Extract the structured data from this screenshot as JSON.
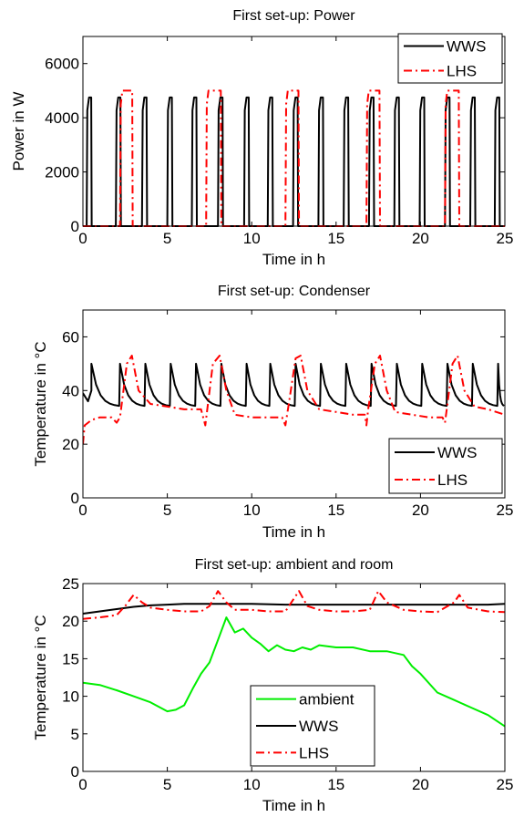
{
  "colors": {
    "WWS": "#000000",
    "LHS": "#ff0000",
    "ambient": "#00ee00"
  },
  "chart_data": [
    {
      "type": "line",
      "title": "First set-up: Power",
      "xlabel": "Time in h",
      "ylabel": "Power in W",
      "xlim": [
        0,
        25
      ],
      "ylim": [
        0,
        7000
      ],
      "xticks": [
        0,
        5,
        10,
        15,
        20,
        25
      ],
      "yticks": [
        0,
        2000,
        4000,
        6000
      ],
      "legend": {
        "placement": "top-right"
      },
      "series": [
        {
          "name": "WWS",
          "style": "solid",
          "color": "#000000",
          "description_kind": "pulse_train",
          "pulse_value": 4750,
          "pulses_start_end_h": [
            [
              0.22,
              0.52
            ],
            [
              1.95,
              2.25
            ],
            [
              3.5,
              3.8
            ],
            [
              5.0,
              5.3
            ],
            [
              6.45,
              6.75
            ],
            [
              8.0,
              8.3
            ],
            [
              9.55,
              9.85
            ],
            [
              10.95,
              11.25
            ],
            [
              12.45,
              12.75
            ],
            [
              13.95,
              14.25
            ],
            [
              15.45,
              15.75
            ],
            [
              16.95,
              17.25
            ],
            [
              18.45,
              18.75
            ],
            [
              19.95,
              20.25
            ],
            [
              21.45,
              21.75
            ],
            [
              22.95,
              23.25
            ],
            [
              24.4,
              24.7
            ]
          ]
        },
        {
          "name": "LHS",
          "style": "dashdot",
          "color": "#ff0000",
          "description_kind": "pulse_train",
          "pulse_value": 5000,
          "pulses_start_end_h": [
            [
              2.2,
              2.95
            ],
            [
              7.3,
              8.2
            ],
            [
              12.0,
              12.8
            ],
            [
              16.8,
              17.6
            ],
            [
              21.45,
              22.3
            ]
          ]
        }
      ]
    },
    {
      "type": "line",
      "title": "First set-up: Condenser",
      "xlabel": "Time in h",
      "ylabel": "Temperature in °C",
      "xlim": [
        0,
        25
      ],
      "ylim": [
        0,
        70
      ],
      "xticks": [
        0,
        5,
        10,
        15,
        20,
        25
      ],
      "yticks": [
        0,
        20,
        40,
        60
      ],
      "legend": {
        "placement": "bottom-right"
      },
      "series": [
        {
          "name": "WWS",
          "style": "solid",
          "color": "#000000",
          "description_kind": "sawtooth",
          "base": 34,
          "peak": 50,
          "peaks_h": [
            0.5,
            2.2,
            3.7,
            5.2,
            6.7,
            8.2,
            9.7,
            11.1,
            12.6,
            14.1,
            15.6,
            17.1,
            18.6,
            20.1,
            21.6,
            23.1,
            24.6
          ]
        },
        {
          "name": "LHS",
          "style": "dashdot",
          "color": "#ff0000",
          "points": [
            [
              0.0,
              20
            ],
            [
              0.1,
              27
            ],
            [
              0.5,
              29
            ],
            [
              1.0,
              30
            ],
            [
              1.7,
              30
            ],
            [
              2.0,
              28
            ],
            [
              2.2,
              30
            ],
            [
              2.6,
              50
            ],
            [
              2.9,
              53
            ],
            [
              3.3,
              40
            ],
            [
              4.0,
              35
            ],
            [
              5.0,
              34
            ],
            [
              6.0,
              33
            ],
            [
              7.0,
              33
            ],
            [
              7.25,
              27
            ],
            [
              7.35,
              32
            ],
            [
              7.7,
              50
            ],
            [
              8.1,
              53
            ],
            [
              8.5,
              40
            ],
            [
              9.0,
              31
            ],
            [
              10.0,
              30
            ],
            [
              11.0,
              30
            ],
            [
              11.8,
              30
            ],
            [
              12.0,
              27
            ],
            [
              12.2,
              35
            ],
            [
              12.6,
              52
            ],
            [
              12.9,
              53
            ],
            [
              13.3,
              40
            ],
            [
              14.0,
              33
            ],
            [
              15.0,
              32
            ],
            [
              16.0,
              31
            ],
            [
              16.7,
              31
            ],
            [
              16.8,
              27
            ],
            [
              16.9,
              33
            ],
            [
              17.3,
              50
            ],
            [
              17.6,
              53
            ],
            [
              18.0,
              40
            ],
            [
              18.5,
              32
            ],
            [
              19.5,
              31
            ],
            [
              20.5,
              30
            ],
            [
              21.3,
              30
            ],
            [
              21.45,
              28
            ],
            [
              21.6,
              35
            ],
            [
              21.9,
              50
            ],
            [
              22.2,
              53
            ],
            [
              22.6,
              40
            ],
            [
              23.2,
              34
            ],
            [
              24.0,
              33
            ],
            [
              25.0,
              31
            ]
          ]
        }
      ]
    },
    {
      "type": "line",
      "title": "First set-up: ambient and room",
      "xlabel": "Time in h",
      "ylabel": "Temperature in °C",
      "xlim": [
        0,
        25
      ],
      "ylim": [
        0,
        25
      ],
      "xticks": [
        0,
        5,
        10,
        15,
        20,
        25
      ],
      "yticks": [
        0,
        5,
        10,
        15,
        20,
        25
      ],
      "legend": {
        "placement": "lower-center"
      },
      "series": [
        {
          "name": "ambient",
          "style": "solid",
          "color": "#00ee00",
          "points": [
            [
              0.0,
              11.8
            ],
            [
              1.0,
              11.5
            ],
            [
              2.0,
              10.8
            ],
            [
              3.0,
              10.0
            ],
            [
              4.0,
              9.2
            ],
            [
              5.0,
              8.0
            ],
            [
              5.5,
              8.2
            ],
            [
              6.0,
              8.8
            ],
            [
              6.5,
              11.0
            ],
            [
              7.0,
              13.0
            ],
            [
              7.5,
              14.5
            ],
            [
              8.0,
              17.5
            ],
            [
              8.5,
              20.5
            ],
            [
              9.0,
              18.5
            ],
            [
              9.5,
              19.0
            ],
            [
              10.0,
              17.8
            ],
            [
              10.5,
              17.0
            ],
            [
              11.0,
              16.0
            ],
            [
              11.5,
              16.8
            ],
            [
              12.0,
              16.2
            ],
            [
              12.5,
              16.0
            ],
            [
              13.0,
              16.5
            ],
            [
              13.5,
              16.2
            ],
            [
              14.0,
              16.8
            ],
            [
              15.0,
              16.5
            ],
            [
              16.0,
              16.5
            ],
            [
              17.0,
              16.0
            ],
            [
              18.0,
              16.0
            ],
            [
              19.0,
              15.5
            ],
            [
              19.5,
              14.0
            ],
            [
              20.0,
              13.0
            ],
            [
              21.0,
              10.5
            ],
            [
              22.0,
              9.5
            ],
            [
              23.0,
              8.5
            ],
            [
              24.0,
              7.5
            ],
            [
              25.0,
              6.0
            ]
          ]
        },
        {
          "name": "WWS",
          "style": "solid",
          "color": "#000000",
          "points": [
            [
              0.0,
              21.0
            ],
            [
              1.0,
              21.3
            ],
            [
              2.0,
              21.6
            ],
            [
              3.0,
              21.9
            ],
            [
              4.0,
              22.1
            ],
            [
              5.0,
              22.2
            ],
            [
              6.0,
              22.3
            ],
            [
              8.0,
              22.3
            ],
            [
              10.0,
              22.3
            ],
            [
              12.0,
              22.2
            ],
            [
              14.0,
              22.2
            ],
            [
              16.0,
              22.2
            ],
            [
              18.0,
              22.2
            ],
            [
              20.0,
              22.2
            ],
            [
              22.0,
              22.2
            ],
            [
              24.0,
              22.2
            ],
            [
              25.0,
              22.3
            ]
          ]
        },
        {
          "name": "LHS",
          "style": "dashdot",
          "color": "#ff0000",
          "points": [
            [
              0.0,
              20.3
            ],
            [
              1.0,
              20.5
            ],
            [
              2.0,
              20.8
            ],
            [
              2.5,
              22.0
            ],
            [
              3.0,
              23.5
            ],
            [
              3.5,
              22.5
            ],
            [
              4.0,
              21.8
            ],
            [
              5.0,
              21.5
            ],
            [
              6.0,
              21.3
            ],
            [
              7.0,
              21.3
            ],
            [
              7.5,
              22.0
            ],
            [
              8.0,
              24.0
            ],
            [
              8.5,
              22.5
            ],
            [
              9.0,
              21.5
            ],
            [
              10.0,
              21.5
            ],
            [
              11.0,
              21.3
            ],
            [
              12.0,
              21.3
            ],
            [
              12.5,
              23.0
            ],
            [
              12.8,
              24.0
            ],
            [
              13.3,
              22.0
            ],
            [
              14.0,
              21.5
            ],
            [
              15.0,
              21.3
            ],
            [
              16.0,
              21.3
            ],
            [
              17.0,
              21.5
            ],
            [
              17.5,
              24.0
            ],
            [
              18.0,
              22.5
            ],
            [
              19.0,
              21.5
            ],
            [
              20.0,
              21.3
            ],
            [
              21.0,
              21.2
            ],
            [
              22.0,
              22.5
            ],
            [
              22.3,
              23.5
            ],
            [
              22.8,
              21.8
            ],
            [
              24.0,
              21.3
            ],
            [
              25.0,
              21.2
            ]
          ]
        }
      ]
    }
  ]
}
